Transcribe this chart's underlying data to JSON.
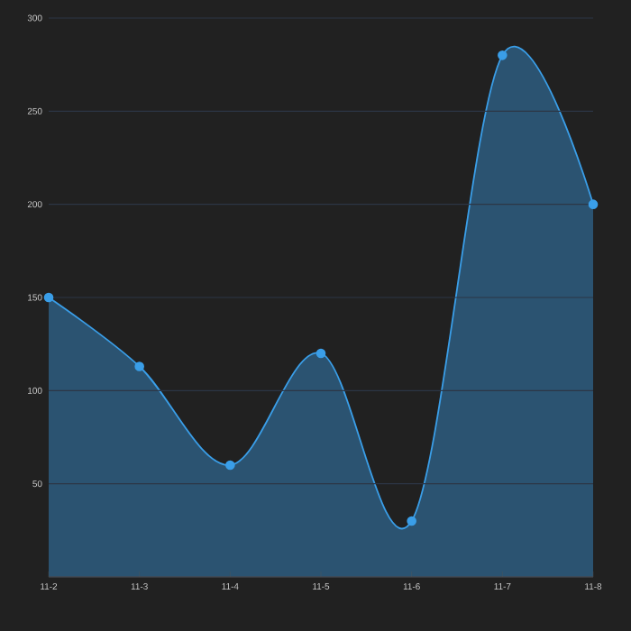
{
  "chart_data": {
    "type": "area",
    "categories": [
      "11-2",
      "11-3",
      "11-4",
      "11-5",
      "11-6",
      "11-7",
      "11-8"
    ],
    "series": [
      {
        "color": "#3a9ee8",
        "values": [
          150,
          113,
          60,
          120,
          30,
          280,
          200
        ]
      }
    ],
    "ylim": [
      0,
      300
    ],
    "yticks": [
      {
        "value": 0,
        "label": null
      },
      50,
      100,
      150,
      200,
      250,
      300
    ],
    "grid": "y",
    "marker": "circle",
    "line_style": "solid"
  }
}
